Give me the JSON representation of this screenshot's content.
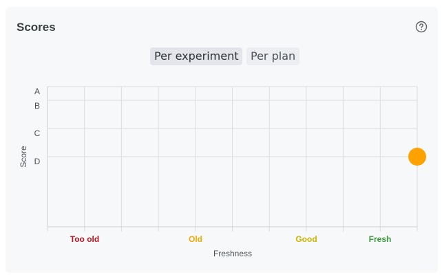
{
  "header": {
    "title": "Scores",
    "help_icon": "help-circle-icon"
  },
  "tabs": [
    {
      "label": "Per experiment",
      "active": true
    },
    {
      "label": "Per plan",
      "active": false
    }
  ],
  "colors": {
    "point": "#ffa200",
    "too_old": "#b8141e",
    "old": "#f0a800",
    "good": "#c8b400",
    "fresh": "#3a9a3a",
    "grid": "#dcdde0"
  },
  "chart_data": {
    "type": "scatter",
    "xlabel": "Freshness",
    "ylabel": "Score",
    "x_categories": [
      {
        "label": "Too old",
        "color": "#b8141e"
      },
      {
        "label": "Old",
        "color": "#f0a800"
      },
      {
        "label": "Good",
        "color": "#c8b400"
      },
      {
        "label": "Fresh",
        "color": "#3a9a3a"
      }
    ],
    "y_ticks": [
      "A",
      "B",
      "C",
      "D"
    ],
    "points": [
      {
        "freshness": 1.0,
        "score": "D"
      }
    ],
    "grid": true
  }
}
